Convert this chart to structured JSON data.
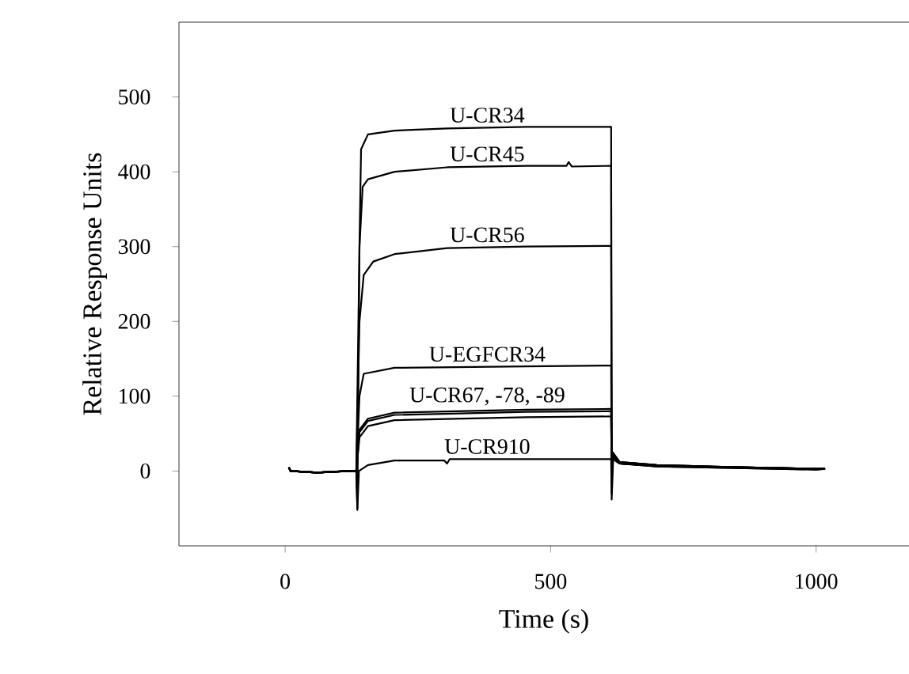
{
  "chart_data": {
    "type": "line",
    "xlabel": "Time (s)",
    "ylabel": "Relative Response Units",
    "xlim": [
      -200,
      1175
    ],
    "ylim": [
      -100,
      600
    ],
    "xticks": [
      0,
      500,
      1000
    ],
    "yticks": [
      0,
      100,
      200,
      300,
      400,
      500
    ],
    "series": [
      {
        "name": "U-CR34",
        "color": "#000000",
        "x": [
          7,
          10,
          60,
          120,
          134,
          136,
          140,
          143,
          156,
          206,
          305,
          455,
          614,
          615,
          617,
          630,
          700,
          850,
          1000,
          1017
        ],
        "values": [
          5,
          0,
          -2,
          0,
          0,
          -50,
          300,
          430,
          450,
          455,
          458,
          460,
          460,
          -30,
          25,
          12,
          8,
          5,
          3,
          3
        ]
      },
      {
        "name": "U-CR45",
        "color": "#000000",
        "x": [
          7,
          10,
          60,
          120,
          134,
          140,
          146,
          156,
          206,
          305,
          455,
          530,
          534,
          540,
          614,
          615,
          617,
          630,
          700,
          850,
          1000,
          1017
        ],
        "values": [
          5,
          0,
          -2,
          0,
          0,
          300,
          380,
          390,
          400,
          406,
          408,
          408,
          413,
          407,
          408,
          -20,
          25,
          12,
          8,
          5,
          3,
          3
        ]
      },
      {
        "name": "U-CR56",
        "color": "#000000",
        "x": [
          7,
          10,
          60,
          120,
          134,
          140,
          148,
          166,
          206,
          305,
          455,
          614,
          615,
          617,
          630,
          700,
          850,
          1000,
          1017
        ],
        "values": [
          5,
          0,
          -2,
          0,
          0,
          200,
          262,
          280,
          290,
          298,
          300,
          301,
          -10,
          22,
          12,
          8,
          5,
          3,
          3
        ]
      },
      {
        "name": "U-EGFCR34",
        "color": "#000000",
        "x": [
          7,
          10,
          60,
          120,
          134,
          140,
          148,
          206,
          455,
          614,
          615,
          617,
          630,
          700,
          850,
          1000,
          1017
        ],
        "values": [
          5,
          0,
          -2,
          0,
          0,
          100,
          130,
          138,
          140,
          141,
          0,
          20,
          11,
          7,
          5,
          3,
          3
        ]
      },
      {
        "name": "U-CR67, -78, -89",
        "color": "#000000",
        "x": [
          7,
          10,
          60,
          120,
          134,
          140,
          156,
          206,
          455,
          614,
          615,
          617,
          630,
          700,
          850,
          1000,
          1017
        ],
        "values": [
          5,
          0,
          -2,
          0,
          0,
          55,
          70,
          78,
          82,
          83,
          0,
          18,
          10,
          7,
          5,
          3,
          3
        ]
      },
      {
        "color": "#000000",
        "x": [
          7,
          10,
          60,
          120,
          134,
          140,
          156,
          206,
          455,
          614,
          615,
          617,
          630,
          700,
          850,
          1000,
          1017
        ],
        "values": [
          5,
          0,
          -2,
          0,
          0,
          52,
          67,
          75,
          79,
          80,
          0,
          18,
          10,
          7,
          5,
          3,
          3
        ]
      },
      {
        "color": "#000000",
        "x": [
          7,
          10,
          60,
          120,
          134,
          140,
          156,
          206,
          455,
          614,
          615,
          617,
          630,
          700,
          850,
          1000,
          1017
        ],
        "values": [
          5,
          0,
          -2,
          0,
          0,
          45,
          60,
          68,
          72,
          73,
          0,
          16,
          10,
          6,
          4,
          2,
          3
        ]
      },
      {
        "name": "U-CR910",
        "color": "#000000",
        "x": [
          7,
          10,
          60,
          120,
          134,
          136,
          139,
          156,
          206,
          300,
          305,
          310,
          455,
          614,
          615,
          618,
          630,
          700,
          850,
          1000,
          1017
        ],
        "values": [
          5,
          0,
          -2,
          0,
          0,
          -52,
          0,
          8,
          14,
          14,
          10,
          16,
          16,
          16,
          -38,
          20,
          10,
          6,
          4,
          2,
          3
        ]
      }
    ]
  }
}
